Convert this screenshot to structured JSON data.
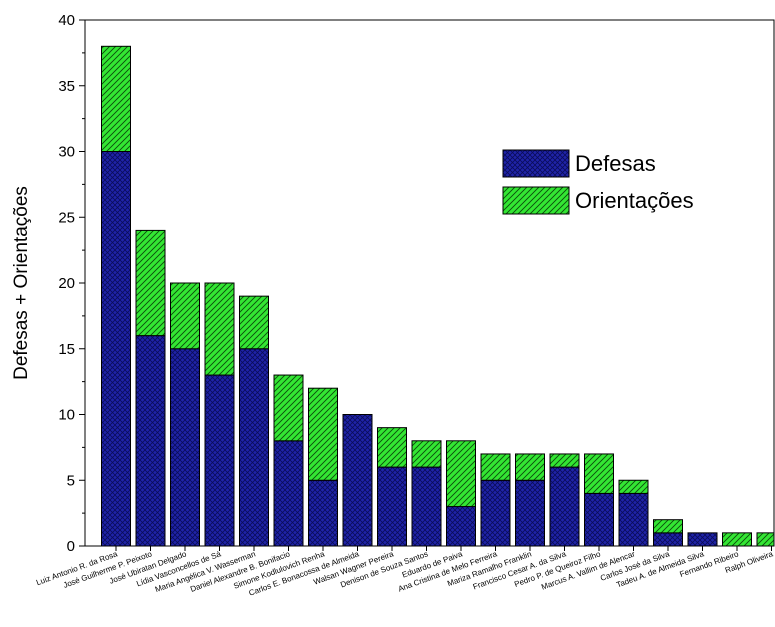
{
  "chart_data": {
    "type": "bar",
    "stacked": true,
    "categories": [
      "Luiz Antonio R. da Rosa",
      "José Guilherme P. Peixoto",
      "José Ubiratan Delgado",
      "Lídia Vasconcellos de Sá",
      "Maria Angélica V. Wasserman",
      "Daniel Alexandre B. Bonifacio",
      "Simone Kodlulovich Renha",
      "Carlos E. Bonacossa de Almeida",
      "Walsan Wagner Pereira",
      "Denison de Souza Santos",
      "Eduardo de Paiva",
      "Ana Cristina de Melo Ferreira",
      "Mariza Ramalho Franklin",
      "Francisco Cesar A. da Silva",
      "Pedro P. de Queiroz Filho",
      "Marcus A. Vallim de Alencar",
      "Carlos José da Silva",
      "Tadeu A. de Almeida Silva",
      "Fernando Ribeiro",
      "Ralph Oliveira"
    ],
    "series": [
      {
        "name": "Defesas",
        "color": "#1f23a8",
        "values": [
          30,
          16,
          15,
          13,
          15,
          8,
          5,
          10,
          6,
          6,
          3,
          5,
          5,
          6,
          4,
          4,
          1,
          1,
          0,
          0
        ]
      },
      {
        "name": "Orientações",
        "color": "#33e633",
        "values": [
          8,
          8,
          5,
          7,
          4,
          5,
          7,
          0,
          3,
          2,
          5,
          2,
          2,
          1,
          3,
          1,
          1,
          0,
          1,
          1
        ]
      }
    ],
    "ylabel": "Defesas + Orientações",
    "xlabel": "",
    "ylim": [
      0,
      40
    ],
    "yticks": [
      0,
      5,
      10,
      15,
      20,
      25,
      30,
      35,
      40
    ],
    "legend_position": "top-right",
    "grid": false
  }
}
